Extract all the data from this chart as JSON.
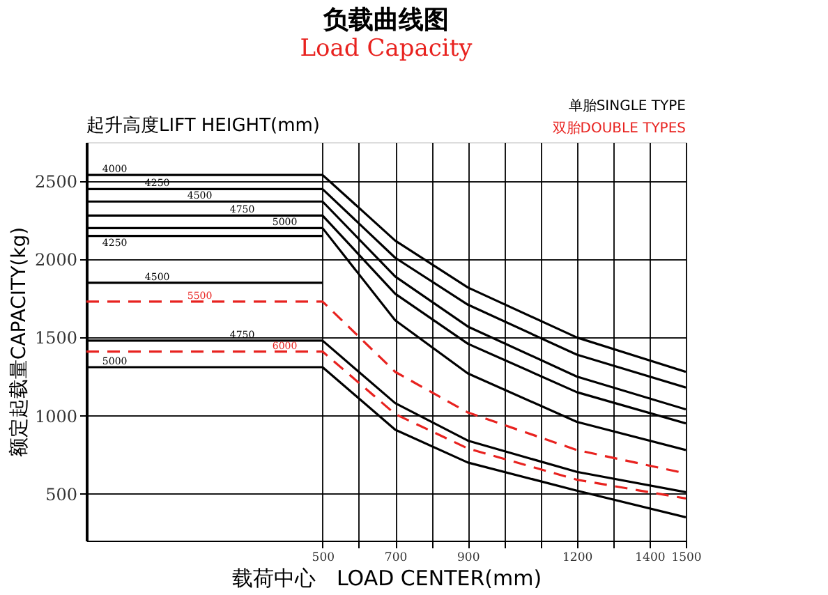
{
  "chart_data": {
    "type": "line",
    "title": "负载曲线图",
    "subtitle": "Load Capacity",
    "xlabel": "载荷中心　LOAD CENTER(mm)",
    "ylabel": "额定起载量CAPACITY(kg)",
    "annotations": [
      "起升高度LIFT HEIGHT(mm)",
      "单胎SINGLE TYPE",
      "双胎DOUBLE TYPES"
    ],
    "xlim": [
      -150,
      1500
    ],
    "ylim": [
      200,
      2750
    ],
    "xticks": [
      500,
      {
        "value": 600,
        "label": null
      },
      700,
      {
        "value": 800,
        "label": null
      },
      900,
      {
        "value": 1000,
        "label": null
      },
      {
        "value": 1100,
        "label": null
      },
      1200,
      {
        "value": 1300,
        "label": null
      },
      1400,
      1500
    ],
    "yticks": [
      500,
      1000,
      1500,
      2000,
      2500
    ],
    "grid": true,
    "legend": false,
    "series": [
      {
        "name": "4000",
        "color": "#000000",
        "line_style": "solid",
        "x": [
          -150,
          500,
          700,
          900,
          1200,
          1500
        ],
        "values": [
          2540,
          2540,
          2120,
          1820,
          1500,
          1280
        ]
      },
      {
        "name": "4250",
        "color": "#000000",
        "line_style": "solid",
        "x": [
          -150,
          500,
          700,
          900,
          1200,
          1500
        ],
        "values": [
          2450,
          2450,
          2010,
          1710,
          1390,
          1180
        ]
      },
      {
        "name": "4500",
        "color": "#000000",
        "line_style": "solid",
        "x": [
          -150,
          500,
          700,
          900,
          1200,
          1500
        ],
        "values": [
          2370,
          2370,
          1890,
          1570,
          1250,
          1040
        ]
      },
      {
        "name": "4750",
        "color": "#000000",
        "line_style": "solid",
        "x": [
          -150,
          500,
          700,
          900,
          1200,
          1500
        ],
        "values": [
          2280,
          2280,
          1780,
          1460,
          1150,
          950
        ]
      },
      {
        "name": "5000",
        "color": "#000000",
        "line_style": "solid",
        "x": [
          -150,
          500,
          700,
          900,
          1200,
          1500
        ],
        "values": [
          2200,
          2200,
          1610,
          1270,
          960,
          780
        ]
      },
      {
        "name": "4250",
        "color": "#000000",
        "line_style": "solid",
        "x": [
          -150,
          500
        ],
        "values": [
          2150,
          2150
        ]
      },
      {
        "name": "4500",
        "color": "#000000",
        "line_style": "solid",
        "x": [
          -150,
          500
        ],
        "values": [
          1850,
          1850
        ]
      },
      {
        "name": "5500",
        "color": "#e8221f",
        "line_style": "dashed",
        "x": [
          -150,
          500,
          700,
          900,
          1200,
          1500
        ],
        "values": [
          1730,
          1730,
          1280,
          1020,
          780,
          630
        ]
      },
      {
        "name": "4750",
        "color": "#000000",
        "line_style": "solid",
        "x": [
          -150,
          500,
          700,
          900,
          1200,
          1500
        ],
        "values": [
          1480,
          1480,
          1080,
          840,
          640,
          510
        ]
      },
      {
        "name": "6000",
        "color": "#e8221f",
        "line_style": "dashed",
        "x": [
          -150,
          500,
          700,
          900,
          1200,
          1500
        ],
        "values": [
          1410,
          1410,
          1010,
          790,
          590,
          470
        ]
      },
      {
        "name": "5000",
        "color": "#000000",
        "line_style": "solid",
        "x": [
          -150,
          500,
          700,
          900,
          1200,
          1500
        ],
        "values": [
          1310,
          1310,
          910,
          700,
          520,
          350
        ]
      }
    ]
  }
}
